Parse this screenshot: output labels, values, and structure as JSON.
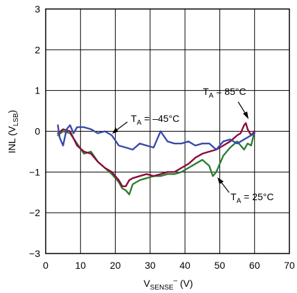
{
  "chart_data": {
    "type": "line",
    "title": "",
    "xlabel": {
      "main": "V",
      "sub": "SENSE",
      "sup": "–",
      "unit": " (V)"
    },
    "ylabel": {
      "main": "INL (V",
      "sub": "LSB",
      "end": ")"
    },
    "xlim": [
      0,
      70
    ],
    "ylim": [
      -3,
      3
    ],
    "x_ticks": [
      0,
      10,
      20,
      30,
      40,
      50,
      60,
      70
    ],
    "y_ticks": [
      3,
      2,
      1,
      0,
      -1,
      -2,
      -3
    ],
    "x_tick_labels": [
      "0",
      "10",
      "20",
      "30",
      "40",
      "50",
      "60",
      "70"
    ],
    "y_tick_labels": [
      "3",
      "2",
      "1",
      "0",
      "−1",
      "−2",
      "−3"
    ],
    "grid": true,
    "legend": "none",
    "series": [
      {
        "color": "#2e7d32",
        "x": [
          3.5,
          5,
          7,
          9,
          11,
          13,
          15,
          17,
          19,
          21,
          22,
          23,
          24,
          25,
          27,
          29,
          31,
          33,
          35,
          37,
          39,
          41,
          43,
          45,
          47,
          48,
          49,
          51,
          53,
          55,
          57,
          58,
          59,
          60
        ],
        "y": [
          -0.1,
          0.0,
          -0.05,
          -0.3,
          -0.55,
          -0.5,
          -0.75,
          -0.9,
          -1.05,
          -1.25,
          -1.4,
          -1.45,
          -1.55,
          -1.3,
          -1.2,
          -1.15,
          -1.1,
          -1.1,
          -1.05,
          -1.05,
          -1.0,
          -0.9,
          -0.8,
          -0.7,
          -0.85,
          -1.1,
          -1.0,
          -0.6,
          -0.4,
          -0.25,
          -0.45,
          -0.3,
          -0.35,
          0.0
        ]
      },
      {
        "color": "#8b0a3a",
        "x": [
          3.5,
          5,
          7,
          9,
          11,
          13,
          15,
          17,
          19,
          21,
          22,
          23,
          24,
          25,
          27,
          29,
          31,
          33,
          35,
          37,
          39,
          41,
          43,
          45,
          47,
          49,
          51,
          53,
          55,
          56,
          57,
          57.5,
          58,
          59,
          60
        ],
        "y": [
          -0.05,
          0.05,
          0.0,
          -0.35,
          -0.5,
          -0.55,
          -0.75,
          -0.9,
          -1.0,
          -1.2,
          -1.35,
          -1.35,
          -1.2,
          -1.15,
          -1.1,
          -1.05,
          -1.1,
          -1.05,
          -1.0,
          -1.0,
          -0.9,
          -0.8,
          -0.65,
          -0.55,
          -0.5,
          -0.45,
          -0.35,
          -0.25,
          -0.1,
          -0.05,
          0.15,
          0.2,
          0.05,
          -0.1,
          0.0
        ]
      },
      {
        "color": "#3949ab",
        "x": [
          3.5,
          4,
          5,
          6,
          7,
          8,
          9,
          11,
          13,
          15,
          17,
          19,
          21,
          23,
          25,
          27,
          29,
          31,
          32,
          33,
          35,
          37,
          39,
          41,
          43,
          45,
          47,
          49,
          51,
          53,
          55,
          57,
          59,
          60
        ],
        "y": [
          0.15,
          -0.15,
          -0.35,
          0.05,
          0.15,
          -0.05,
          0.1,
          0.1,
          0.05,
          -0.05,
          0.0,
          -0.1,
          -0.35,
          -0.4,
          -0.45,
          -0.3,
          -0.35,
          -0.4,
          -0.2,
          0.0,
          -0.25,
          -0.3,
          -0.3,
          -0.25,
          -0.35,
          -0.3,
          -0.3,
          -0.45,
          -0.25,
          -0.2,
          -0.3,
          -0.2,
          -0.1,
          -0.05
        ]
      }
    ],
    "annotations": [
      {
        "name": "annotation-85c",
        "main": "T",
        "sub": "A",
        "rest": " = 85°C"
      },
      {
        "name": "annotation-minus45c",
        "main": "T",
        "sub": "A",
        "rest": " = –45°C"
      },
      {
        "name": "annotation-25c",
        "main": "T",
        "sub": "A",
        "rest": " = 25°C"
      }
    ]
  }
}
